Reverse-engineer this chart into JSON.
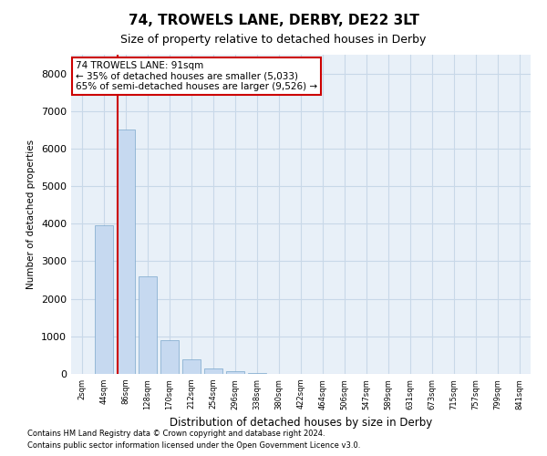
{
  "title": "74, TROWELS LANE, DERBY, DE22 3LT",
  "subtitle": "Size of property relative to detached houses in Derby",
  "xlabel": "Distribution of detached houses by size in Derby",
  "ylabel": "Number of detached properties",
  "footnote1": "Contains HM Land Registry data © Crown copyright and database right 2024.",
  "footnote2": "Contains public sector information licensed under the Open Government Licence v3.0.",
  "annotation_title": "74 TROWELS LANE: 91sqm",
  "annotation_line1": "← 35% of detached houses are smaller (5,033)",
  "annotation_line2": "65% of semi-detached houses are larger (9,526) →",
  "bar_color": "#c6d9f0",
  "bar_edge_color": "#7ba7cc",
  "grid_color": "#c8d8e8",
  "background_color": "#e8f0f8",
  "vline_color": "#cc0000",
  "annotation_box_color": "#cc0000",
  "ylim": [
    0,
    8500
  ],
  "yticks": [
    0,
    1000,
    2000,
    3000,
    4000,
    5000,
    6000,
    7000,
    8000
  ],
  "bin_labels": [
    "2sqm",
    "44sqm",
    "86sqm",
    "128sqm",
    "170sqm",
    "212sqm",
    "254sqm",
    "296sqm",
    "338sqm",
    "380sqm",
    "422sqm",
    "464sqm",
    "506sqm",
    "547sqm",
    "589sqm",
    "631sqm",
    "673sqm",
    "715sqm",
    "757sqm",
    "799sqm",
    "841sqm"
  ],
  "bin_edges": [
    2,
    44,
    86,
    128,
    170,
    212,
    254,
    296,
    338,
    380,
    422,
    464,
    506,
    547,
    589,
    631,
    673,
    715,
    757,
    799,
    841,
    883
  ],
  "bar_heights": [
    0,
    3950,
    6500,
    2600,
    900,
    400,
    140,
    80,
    28,
    6,
    2,
    0,
    0,
    0,
    0,
    0,
    0,
    0,
    0,
    0,
    0
  ],
  "property_size": 91,
  "vline_x": 91
}
